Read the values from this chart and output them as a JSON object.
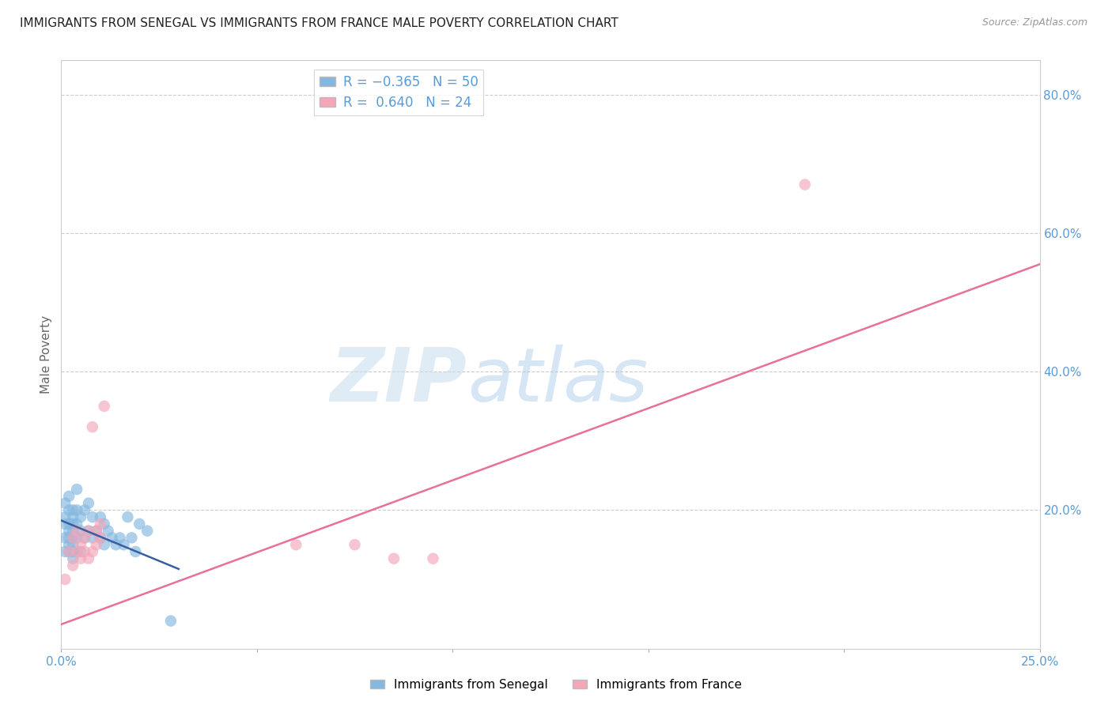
{
  "title": "IMMIGRANTS FROM SENEGAL VS IMMIGRANTS FROM FRANCE MALE POVERTY CORRELATION CHART",
  "source": "Source: ZipAtlas.com",
  "ylabel": "Male Poverty",
  "xlim": [
    0.0,
    0.25
  ],
  "ylim": [
    0.0,
    0.85
  ],
  "xticks": [
    0.0,
    0.05,
    0.1,
    0.15,
    0.2,
    0.25
  ],
  "xtick_labels": [
    "0.0%",
    "",
    "",
    "",
    "",
    "25.0%"
  ],
  "yticks_right": [
    0.2,
    0.4,
    0.6,
    0.8
  ],
  "ytick_labels_right": [
    "20.0%",
    "40.0%",
    "60.0%",
    "80.0%"
  ],
  "senegal_x": [
    0.001,
    0.001,
    0.001,
    0.001,
    0.001,
    0.002,
    0.002,
    0.002,
    0.002,
    0.002,
    0.002,
    0.002,
    0.003,
    0.003,
    0.003,
    0.003,
    0.003,
    0.003,
    0.003,
    0.003,
    0.004,
    0.004,
    0.004,
    0.004,
    0.004,
    0.005,
    0.005,
    0.005,
    0.006,
    0.006,
    0.007,
    0.007,
    0.008,
    0.008,
    0.009,
    0.01,
    0.01,
    0.011,
    0.011,
    0.012,
    0.013,
    0.014,
    0.015,
    0.016,
    0.017,
    0.018,
    0.019,
    0.02,
    0.022,
    0.028
  ],
  "senegal_y": [
    0.14,
    0.16,
    0.18,
    0.19,
    0.21,
    0.14,
    0.15,
    0.16,
    0.17,
    0.18,
    0.2,
    0.22,
    0.13,
    0.14,
    0.15,
    0.16,
    0.17,
    0.18,
    0.19,
    0.2,
    0.14,
    0.16,
    0.18,
    0.2,
    0.23,
    0.14,
    0.17,
    0.19,
    0.16,
    0.2,
    0.17,
    0.21,
    0.16,
    0.19,
    0.17,
    0.16,
    0.19,
    0.15,
    0.18,
    0.17,
    0.16,
    0.15,
    0.16,
    0.15,
    0.19,
    0.16,
    0.14,
    0.18,
    0.17,
    0.04
  ],
  "france_x": [
    0.001,
    0.002,
    0.003,
    0.003,
    0.004,
    0.004,
    0.005,
    0.005,
    0.006,
    0.006,
    0.007,
    0.007,
    0.008,
    0.008,
    0.009,
    0.009,
    0.01,
    0.01,
    0.011,
    0.06,
    0.075,
    0.085,
    0.095,
    0.19
  ],
  "france_y": [
    0.1,
    0.14,
    0.12,
    0.16,
    0.14,
    0.17,
    0.13,
    0.15,
    0.14,
    0.16,
    0.13,
    0.17,
    0.14,
    0.32,
    0.15,
    0.17,
    0.16,
    0.18,
    0.35,
    0.15,
    0.15,
    0.13,
    0.13,
    0.67
  ],
  "blue_trend_x": [
    0.0,
    0.03
  ],
  "blue_trend_y": [
    0.185,
    0.115
  ],
  "pink_trend_x": [
    0.0,
    0.25
  ],
  "pink_trend_y": [
    0.035,
    0.555
  ],
  "watermark_zip": "ZIP",
  "watermark_atlas": "atlas",
  "title_fontsize": 11,
  "axis_color": "#5b9bd5",
  "senegal_color": "#85b8e0",
  "france_color": "#f4a7b9",
  "blue_line_color": "#3a5fa0",
  "pink_line_color": "#e8709a",
  "background_color": "#ffffff",
  "grid_color": "#cccccc"
}
